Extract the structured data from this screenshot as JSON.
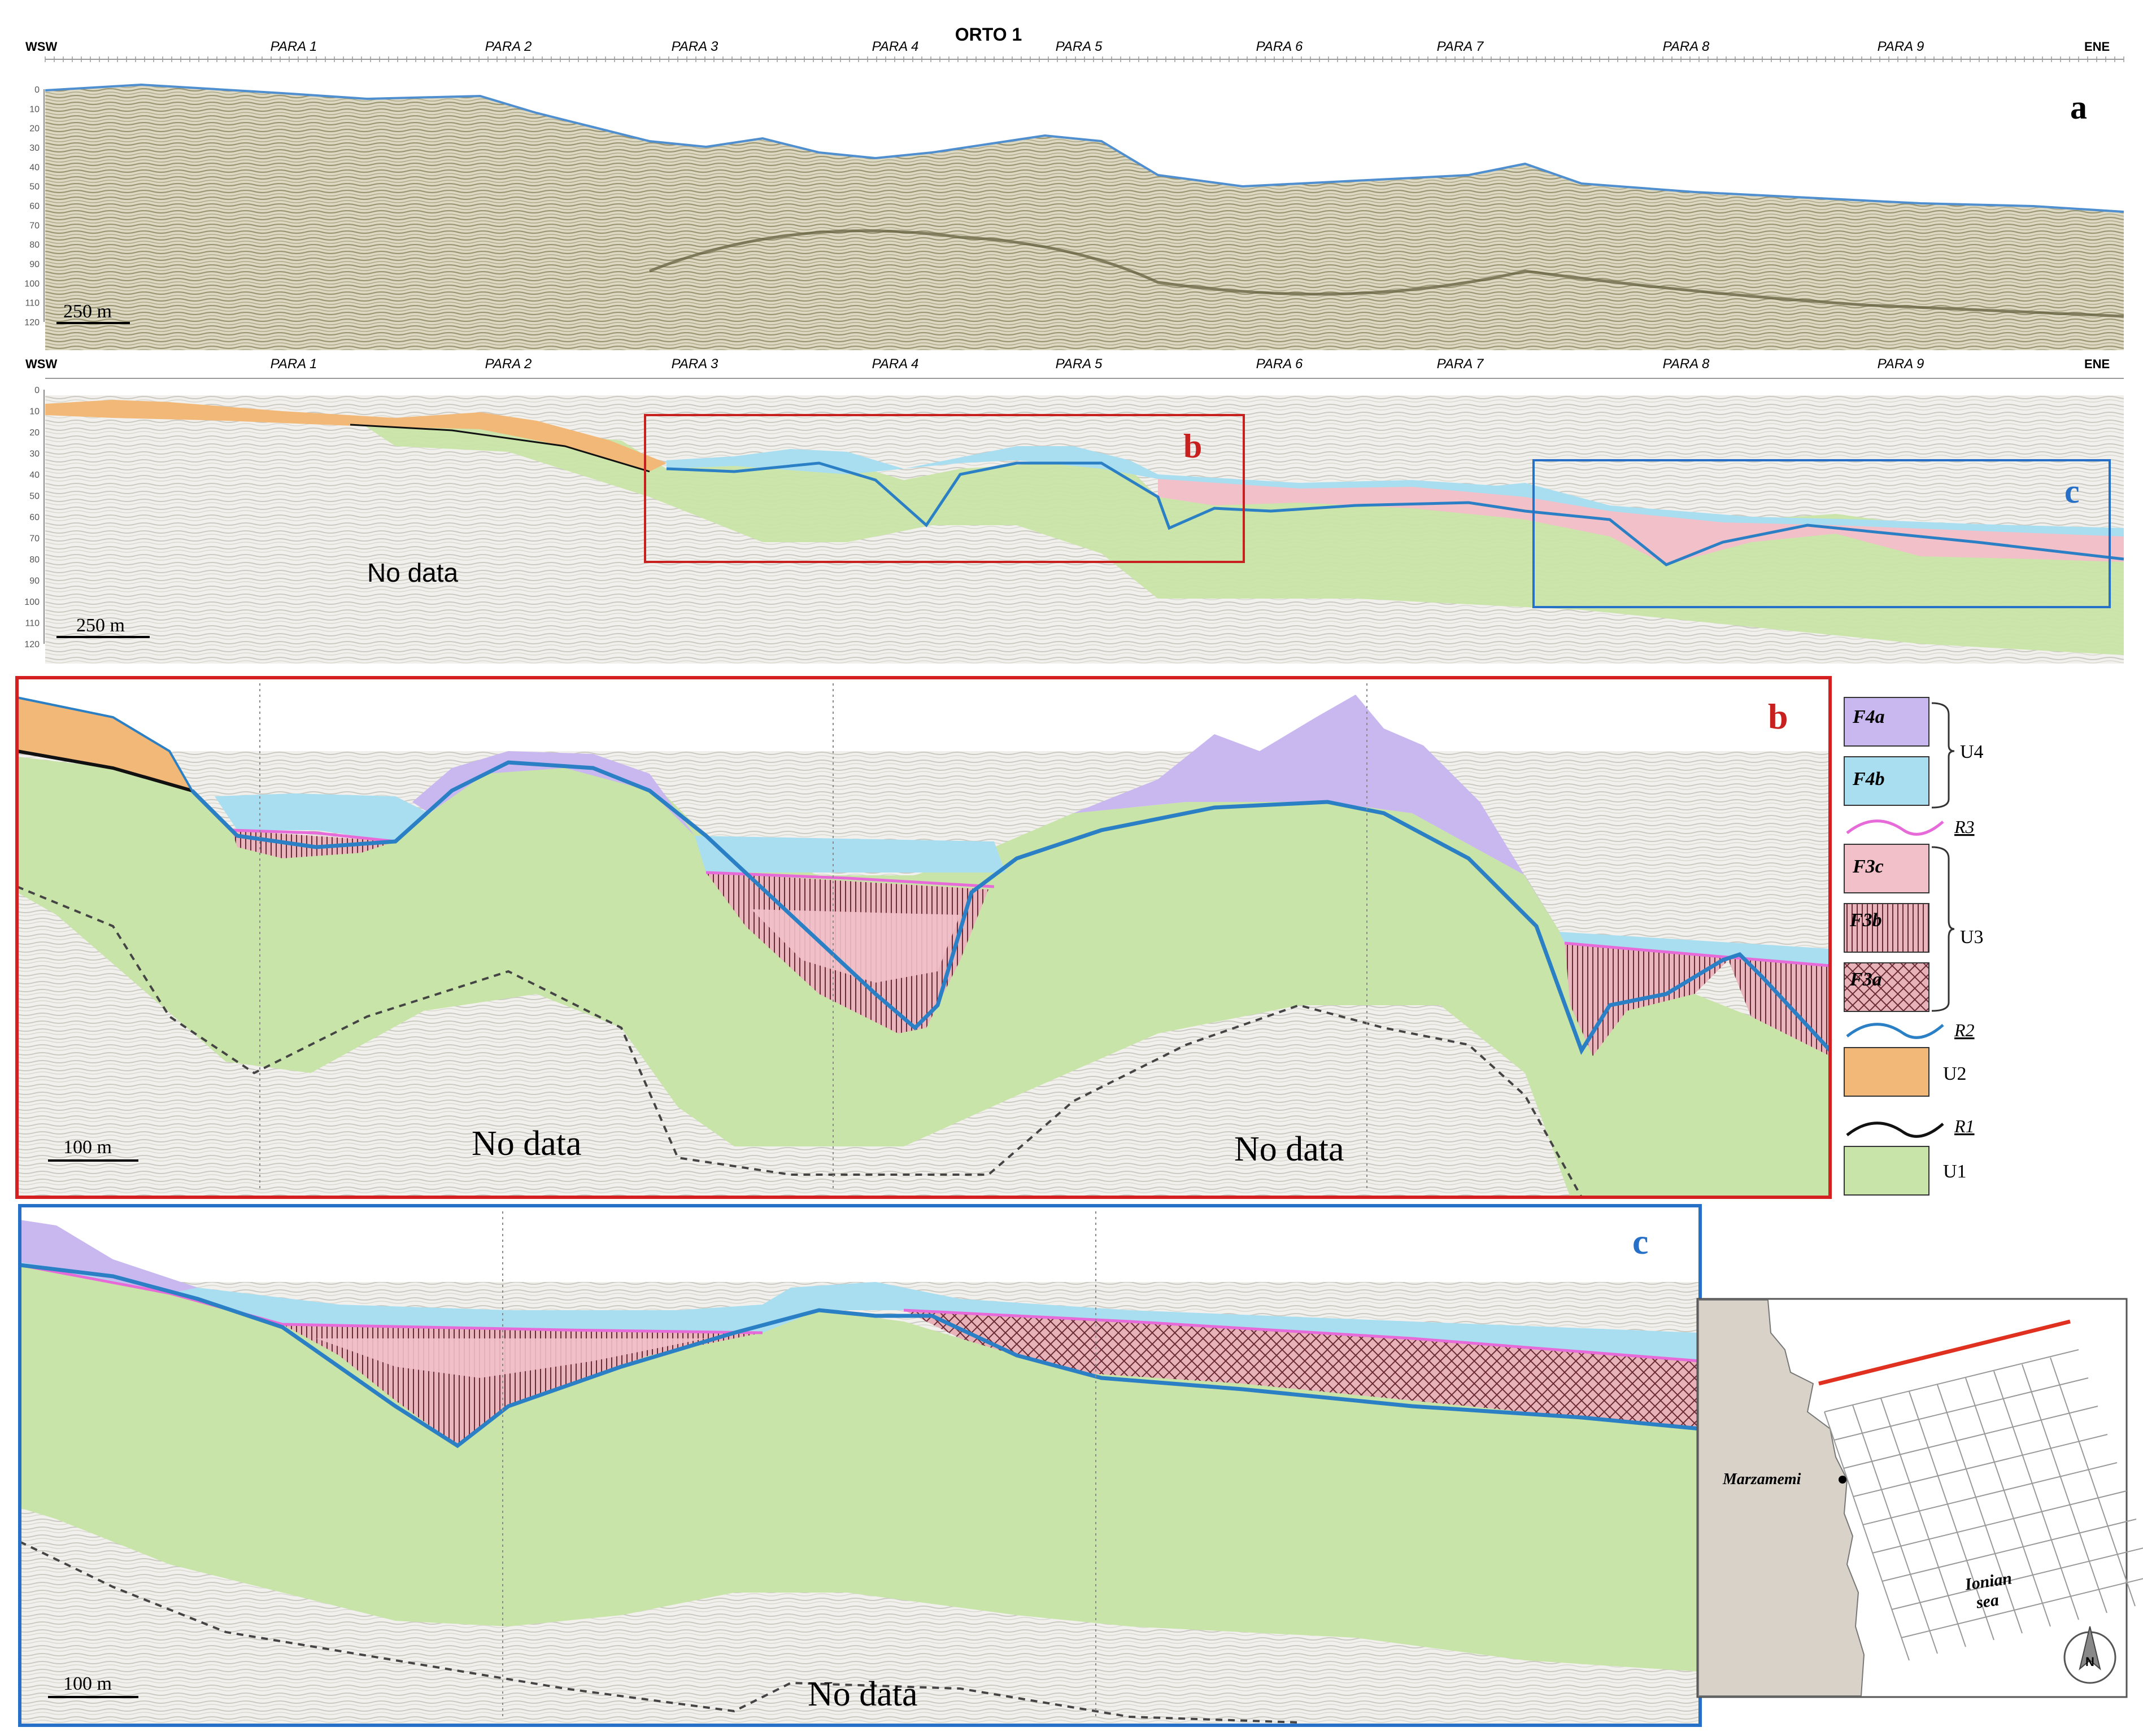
{
  "figure": {
    "profile_title": "ORTO 1",
    "wsw": "WSW",
    "ene": "ENE",
    "para_labels": [
      "PARA 1",
      "PARA 2",
      "PARA 3",
      "PARA 4",
      "PARA 5",
      "PARA 6",
      "PARA 7",
      "PARA 8",
      "PARA 9"
    ],
    "depth_ticks": [
      "0",
      "10",
      "20",
      "30",
      "40",
      "50",
      "60",
      "70",
      "80",
      "90",
      "100",
      "110",
      "120"
    ],
    "panel_a_letter": "a",
    "panel_b_letter": "b",
    "panel_c_letter": "c",
    "scale_250": "250 m",
    "scale_100": "100 m",
    "no_data": "No data"
  },
  "legend": {
    "items": [
      {
        "code": "F4a",
        "fill": "#c9b8ef"
      },
      {
        "code": "F4b",
        "fill": "#a9def1"
      },
      {
        "code": "R3",
        "color": "#e66bd9"
      },
      {
        "code": "F3c",
        "fill": "#f2c0c8"
      },
      {
        "code": "F3b",
        "fill": "#e9b0b8"
      },
      {
        "code": "F3a",
        "fill": "#e9b0b8"
      },
      {
        "code": "R2",
        "color": "#2b7fc4"
      },
      {
        "code": "U2",
        "fill": "#f2b878"
      },
      {
        "code": "R1",
        "color": "#111111"
      },
      {
        "code": "U1",
        "fill": "#c8e4a8"
      }
    ],
    "group_u4": "U4",
    "group_u3": "U3"
  },
  "map": {
    "place": "Marzamemi",
    "sea_line1": "Ionian",
    "sea_line2": "sea",
    "compass_letter": "N"
  },
  "colors": {
    "seismic_bg": "#ece9dc",
    "seismic_dark": "#8a8a5c",
    "u1": "#c8e4a8",
    "u2": "#f2b878",
    "f4a": "#c9b8ef",
    "f4b": "#a9def1",
    "f3c": "#f2c0c8",
    "r2": "#2b7fc4",
    "r3": "#e66bd9",
    "box_b": "#c8201e",
    "box_c": "#2670c8",
    "land": "#d8d2c8"
  }
}
